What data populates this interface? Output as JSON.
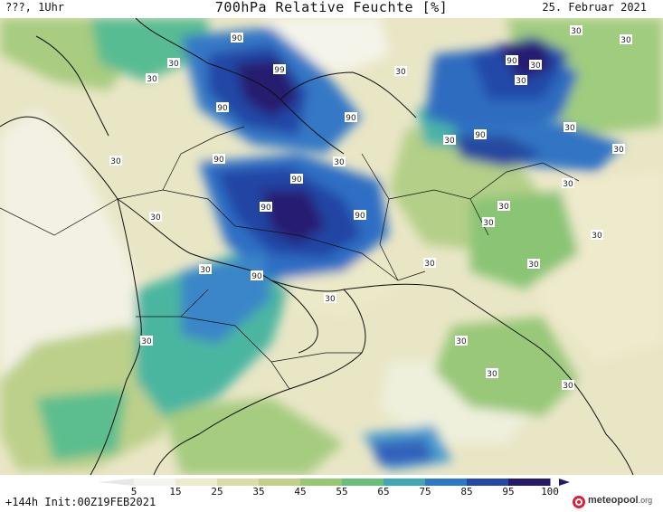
{
  "header": {
    "left": "???, 1Uhr",
    "title": "700hPa Relative Feuchte [%]",
    "date": "25. Februar 2021"
  },
  "footer": {
    "run_info": "+144h Init:00Z19FEB2021",
    "brand": "meteopool",
    "brand_suffix": ".org"
  },
  "legend": {
    "ticks": [
      "5",
      "15",
      "25",
      "35",
      "45",
      "55",
      "65",
      "75",
      "85",
      "95",
      "100"
    ],
    "colors": [
      "#f4f4ee",
      "#eeeacc",
      "#dcdca8",
      "#c2d08a",
      "#96c874",
      "#66c07a",
      "#3ea8b4",
      "#2e78c8",
      "#2448a8",
      "#231a6c"
    ]
  },
  "contour_labels": [
    "90",
    "99",
    "90",
    "90",
    "90",
    "90",
    "90",
    "90",
    "90",
    "90",
    "90",
    "30",
    "30",
    "30",
    "30",
    "30",
    "30",
    "30",
    "30",
    "30",
    "30",
    "30",
    "30",
    "30",
    "30",
    "30",
    "30",
    "30",
    "30",
    "30",
    "30",
    "30",
    "30",
    "30",
    "30",
    "30"
  ]
}
